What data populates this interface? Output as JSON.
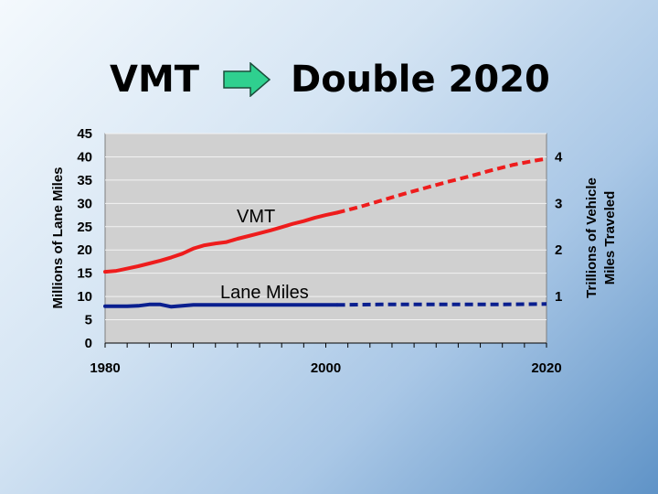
{
  "title": {
    "left": "VMT",
    "right": "Double 2020",
    "arrow_icon": "right-arrow-icon",
    "arrow_color": "#2fd08f"
  },
  "chart_data": {
    "type": "line",
    "title": "",
    "xlabel": "",
    "ylabel": "Millions of Lane Miles",
    "y2label_line1": "Trillions of Vehicle",
    "y2label_line2": "Miles Traveled",
    "xlim": [
      1980,
      2020
    ],
    "ylim": [
      0,
      45
    ],
    "y2lim": [
      0,
      4.5
    ],
    "xticks": [
      1980,
      2000,
      2020
    ],
    "yticks": [
      0,
      5,
      10,
      15,
      20,
      25,
      30,
      35,
      40,
      45
    ],
    "y2ticks": [
      1,
      2,
      3,
      4
    ],
    "grid": true,
    "plot_background": "#d0d0d0",
    "series": [
      {
        "name": "VMT",
        "axis": "right",
        "color": "#ee1c1c",
        "actual": {
          "x": [
            1980,
            1981,
            1982,
            1983,
            1984,
            1985,
            1986,
            1987,
            1988,
            1989,
            1990,
            1991,
            1992,
            1993,
            1994,
            1995,
            1996,
            1997,
            1998,
            1999,
            2000,
            2001
          ],
          "y": [
            1.53,
            1.55,
            1.6,
            1.65,
            1.71,
            1.77,
            1.84,
            1.92,
            2.03,
            2.1,
            2.14,
            2.17,
            2.24,
            2.3,
            2.36,
            2.42,
            2.49,
            2.56,
            2.62,
            2.69,
            2.75,
            2.8
          ]
        },
        "projected": {
          "x": [
            2001,
            2003,
            2005,
            2007,
            2009,
            2011,
            2013,
            2015,
            2017,
            2019,
            2020
          ],
          "y": [
            2.8,
            2.92,
            3.06,
            3.2,
            3.33,
            3.46,
            3.58,
            3.71,
            3.83,
            3.92,
            3.96
          ]
        }
      },
      {
        "name": "Lane Miles",
        "axis": "left",
        "color": "#0a1f8f",
        "actual": {
          "x": [
            1980,
            1982,
            1983,
            1984,
            1985,
            1986,
            1988,
            1990,
            1995,
            2000,
            2001
          ],
          "y": [
            7.9,
            7.9,
            8.0,
            8.3,
            8.3,
            7.8,
            8.2,
            8.2,
            8.2,
            8.2,
            8.2
          ]
        },
        "projected": {
          "x": [
            2001,
            2005,
            2010,
            2015,
            2020
          ],
          "y": [
            8.2,
            8.3,
            8.3,
            8.3,
            8.4
          ]
        }
      }
    ]
  }
}
